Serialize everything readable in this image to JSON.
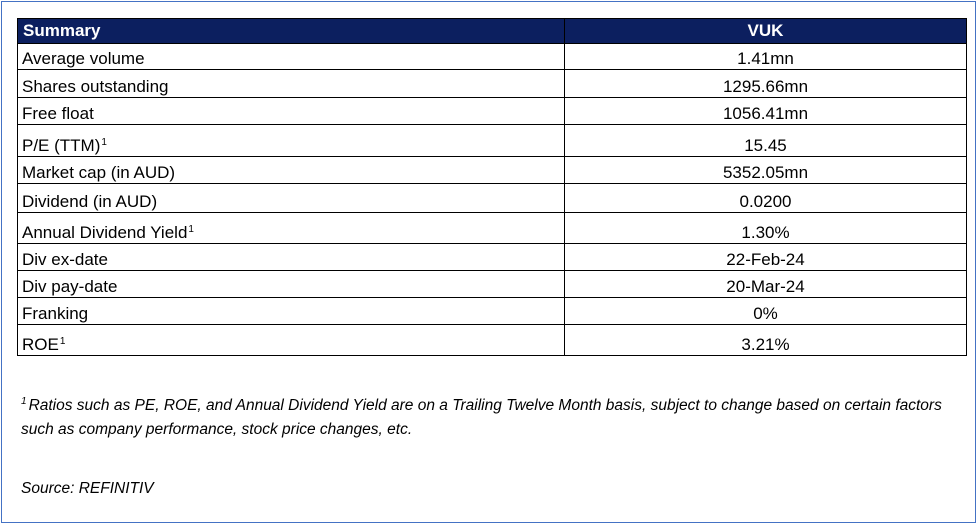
{
  "table": {
    "header": {
      "label": "Summary",
      "value": "VUK"
    },
    "rows": [
      {
        "label": "Average volume",
        "sup": "",
        "value": "1.41mn"
      },
      {
        "label": "Shares outstanding",
        "sup": "",
        "value": "1295.66mn"
      },
      {
        "label": "Free float",
        "sup": "",
        "value": "1056.41mn"
      },
      {
        "label": "P/E (TTM)",
        "sup": "1",
        "value": "15.45"
      },
      {
        "label": "Market cap (in AUD)",
        "sup": "",
        "value": "5352.05mn"
      },
      {
        "label": "Dividend (in AUD)",
        "sup": "",
        "value": "0.0200"
      },
      {
        "label": "Annual Dividend Yield",
        "sup": "1",
        "value": "1.30%"
      },
      {
        "label": "Div ex-date",
        "sup": "",
        "value": "22-Feb-24"
      },
      {
        "label": "Div pay-date",
        "sup": "",
        "value": "20-Mar-24"
      },
      {
        "label": "Franking",
        "sup": "",
        "value": "0%"
      },
      {
        "label": "ROE",
        "sup": "1",
        "value": "3.21%"
      }
    ]
  },
  "footnote": {
    "marker": "1",
    "text": "Ratios such as PE, ROE, and Annual Dividend Yield are on a Trailing Twelve Month basis, subject to change based on certain factors such as company performance, stock price changes, etc."
  },
  "source": "Source: REFINITIV",
  "colors": {
    "header_bg": "#0c1f5f",
    "header_text": "#ffffff",
    "frame_border": "#4472c4"
  }
}
